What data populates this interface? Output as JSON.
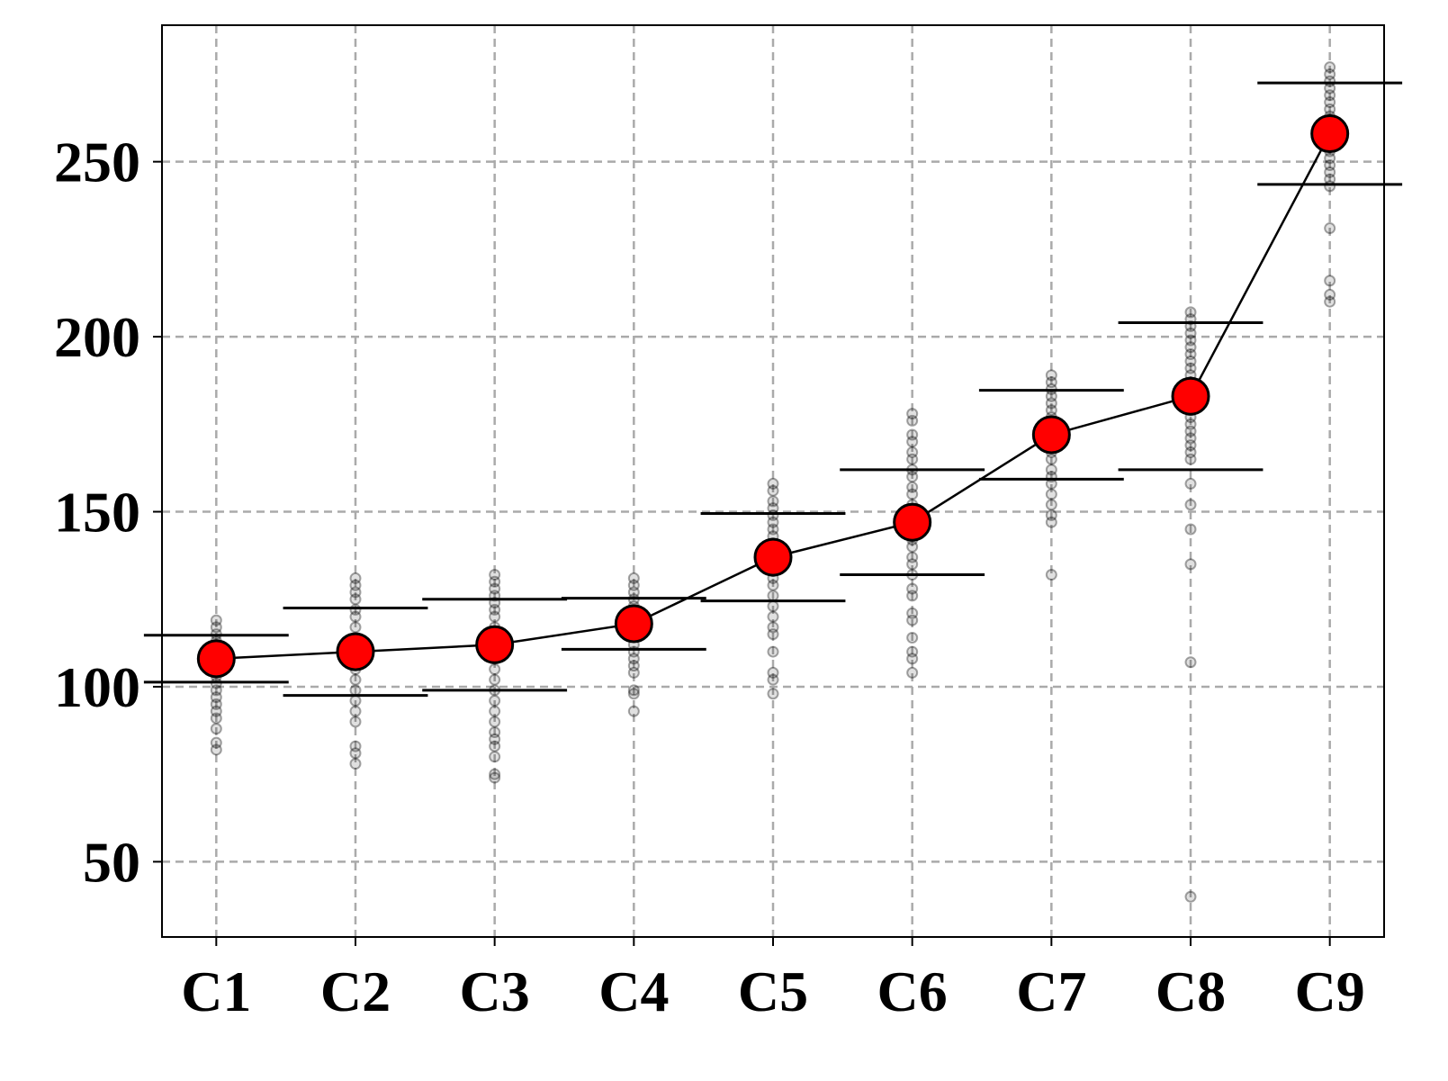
{
  "chart_data": {
    "type": "errorbar-scatter",
    "categories": [
      "C1",
      "C2",
      "C3",
      "C4",
      "C5",
      "C6",
      "C7",
      "C8",
      "C9"
    ],
    "means": [
      108,
      110,
      112,
      118,
      137,
      147,
      172,
      183,
      258
    ],
    "errors": [
      6.7,
      12.5,
      13,
      7.3,
      12.5,
      15,
      12.7,
      21,
      14.5
    ],
    "samples": [
      [
        119,
        117,
        115,
        113,
        111,
        109,
        107,
        105,
        103,
        101,
        99,
        97,
        95,
        93,
        91,
        88,
        84,
        82
      ],
      [
        131,
        129,
        127,
        125,
        122,
        120,
        117,
        114,
        111,
        108,
        105,
        102,
        99,
        96,
        93,
        90,
        83,
        81,
        78
      ],
      [
        132,
        130,
        128,
        126,
        124,
        122,
        120,
        117,
        114,
        111,
        108,
        105,
        102,
        99,
        96,
        93,
        90,
        87,
        85,
        83,
        80,
        75,
        74
      ],
      [
        131,
        129,
        127,
        125,
        123,
        121,
        119,
        117,
        115,
        112,
        110,
        108,
        106,
        104,
        99,
        98,
        93
      ],
      [
        158,
        156,
        153,
        151,
        149,
        147,
        145,
        143,
        141,
        139,
        137,
        135,
        133,
        131,
        129,
        126,
        123,
        120,
        117,
        115,
        110,
        104,
        102,
        98
      ],
      [
        178,
        176,
        172,
        170,
        167,
        165,
        162,
        160,
        157,
        155,
        152,
        150,
        148,
        146,
        144,
        142,
        140,
        137,
        135,
        132,
        128,
        126,
        121,
        119,
        114,
        110,
        108,
        104
      ],
      [
        189,
        187,
        185,
        183,
        181,
        179,
        177,
        175,
        173,
        171,
        169,
        167,
        165,
        162,
        160,
        158,
        155,
        152,
        149,
        147,
        132
      ],
      [
        207,
        205,
        203,
        201,
        199,
        197,
        195,
        193,
        191,
        189,
        187,
        185,
        183,
        181,
        179,
        177,
        175,
        173,
        171,
        169,
        167,
        165,
        158,
        152,
        145,
        135,
        107,
        40
      ],
      [
        277,
        275,
        273,
        271,
        269,
        267,
        265,
        263,
        261,
        259,
        257,
        255,
        253,
        251,
        249,
        247,
        245,
        243,
        231,
        216,
        212,
        210
      ]
    ],
    "mean_color": "#ff0000",
    "sample_color": "#000000",
    "line_color": "#000000",
    "ylim": [
      28.5,
      289
    ],
    "yticks": [
      50,
      100,
      150,
      200,
      250
    ],
    "grid": true
  }
}
